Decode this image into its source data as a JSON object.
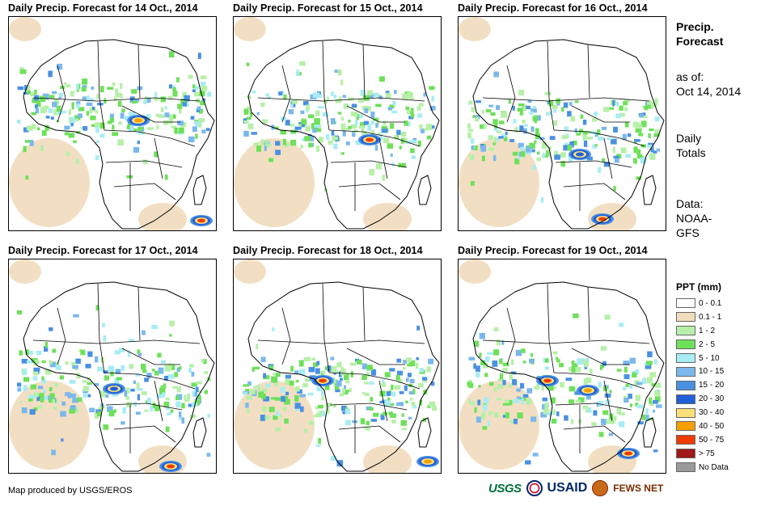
{
  "panels": [
    {
      "title": "Daily Precip. Forecast for 14 Oct., 2014"
    },
    {
      "title": "Daily Precip. Forecast for 15 Oct., 2014"
    },
    {
      "title": "Daily Precip. Forecast for 16 Oct., 2014"
    },
    {
      "title": "Daily Precip. Forecast for 17 Oct., 2014"
    },
    {
      "title": "Daily Precip. Forecast for 18 Oct., 2014"
    },
    {
      "title": "Daily Precip. Forecast for 19 Oct., 2014"
    }
  ],
  "side": {
    "title_line1": "Precip.",
    "title_line2": "Forecast",
    "asof_label": "as of:",
    "asof_date": "Oct 14, 2014",
    "totals_line1": "Daily",
    "totals_line2": "Totals",
    "data_label": "Data:",
    "data_line1": "NOAA-",
    "data_line2": "GFS"
  },
  "legend": {
    "title": "PPT (mm)",
    "items": [
      {
        "label": "0 - 0.1",
        "color": "#ffffff"
      },
      {
        "label": "0.1 - 1",
        "color": "#f1dcbc"
      },
      {
        "label": "1 - 2",
        "color": "#b6f0a8"
      },
      {
        "label": "2 - 5",
        "color": "#6ee05a"
      },
      {
        "label": "5 - 10",
        "color": "#a8ecf4"
      },
      {
        "label": "10 - 15",
        "color": "#7ab8ec"
      },
      {
        "label": "15 - 20",
        "color": "#4a90e2"
      },
      {
        "label": "20 - 30",
        "color": "#1f5fd8"
      },
      {
        "label": "30 - 40",
        "color": "#fbe07a"
      },
      {
        "label": "40 - 50",
        "color": "#f5a000"
      },
      {
        "label": "50 - 75",
        "color": "#f03c00"
      },
      {
        "label": "> 75",
        "color": "#a01818"
      },
      {
        "label": "No Data",
        "color": "#9a9a9a"
      }
    ]
  },
  "footer": {
    "credit": "Map produced by USGS/EROS"
  },
  "logos": {
    "usgs": "USGS",
    "usaid": "USAID",
    "fews": "FEWS NET"
  }
}
